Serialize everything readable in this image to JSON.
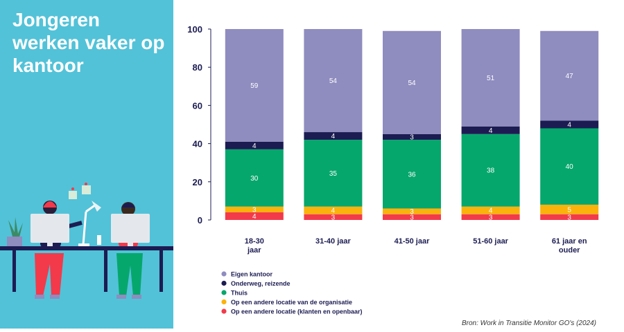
{
  "headline": "Jongeren werken vaker op kantoor",
  "source": "Bron: Work in Transitie Monitor GO's (2024)",
  "colors": {
    "sidebar": "#52c2d8",
    "eigen_kantoor": "#8f8cbf",
    "onderweg": "#1c1c53",
    "thuis": "#06a76c",
    "andere_locatie_org": "#fbb20b",
    "andere_locatie_klanten": "#f23a4b"
  },
  "chart_data": {
    "type": "bar",
    "stacked": true,
    "title": "Jongeren werken vaker op kantoor",
    "categories": [
      "18-30 jaar",
      "31-40 jaar",
      "41-50 jaar",
      "51-60 jaar",
      "61 jaar en ouder"
    ],
    "category_lines": [
      [
        "18-30",
        "jaar"
      ],
      [
        "31-40 jaar"
      ],
      [
        "41-50 jaar"
      ],
      [
        "51-60 jaar"
      ],
      [
        "61 jaar en",
        "ouder"
      ]
    ],
    "series": [
      {
        "name": "Op een andere locatie (klanten en openbaar)",
        "color": "#f23a4b",
        "values": [
          4,
          3,
          3,
          3,
          3
        ]
      },
      {
        "name": "Op een andere locatie van de organisatie",
        "color": "#fbb20b",
        "values": [
          3,
          4,
          3,
          4,
          5
        ]
      },
      {
        "name": "Thuis",
        "color": "#06a76c",
        "values": [
          30,
          35,
          36,
          38,
          40
        ]
      },
      {
        "name": "Onderweg, reizende",
        "color": "#1c1c53",
        "values": [
          4,
          4,
          3,
          4,
          4
        ]
      },
      {
        "name": "Eigen kantoor",
        "color": "#8f8cbf",
        "values": [
          59,
          54,
          54,
          51,
          47
        ]
      }
    ],
    "legend_order": [
      "Eigen kantoor",
      "Onderweg, reizende",
      "Thuis",
      "Op een andere locatie van de organisatie",
      "Op een andere locatie (klanten en openbaar)"
    ],
    "yticks": [
      0,
      20,
      40,
      60,
      80,
      100
    ],
    "ylim": [
      0,
      100
    ],
    "xlabel": "",
    "ylabel": "",
    "legend_position": "bottom-left",
    "grid": false
  }
}
